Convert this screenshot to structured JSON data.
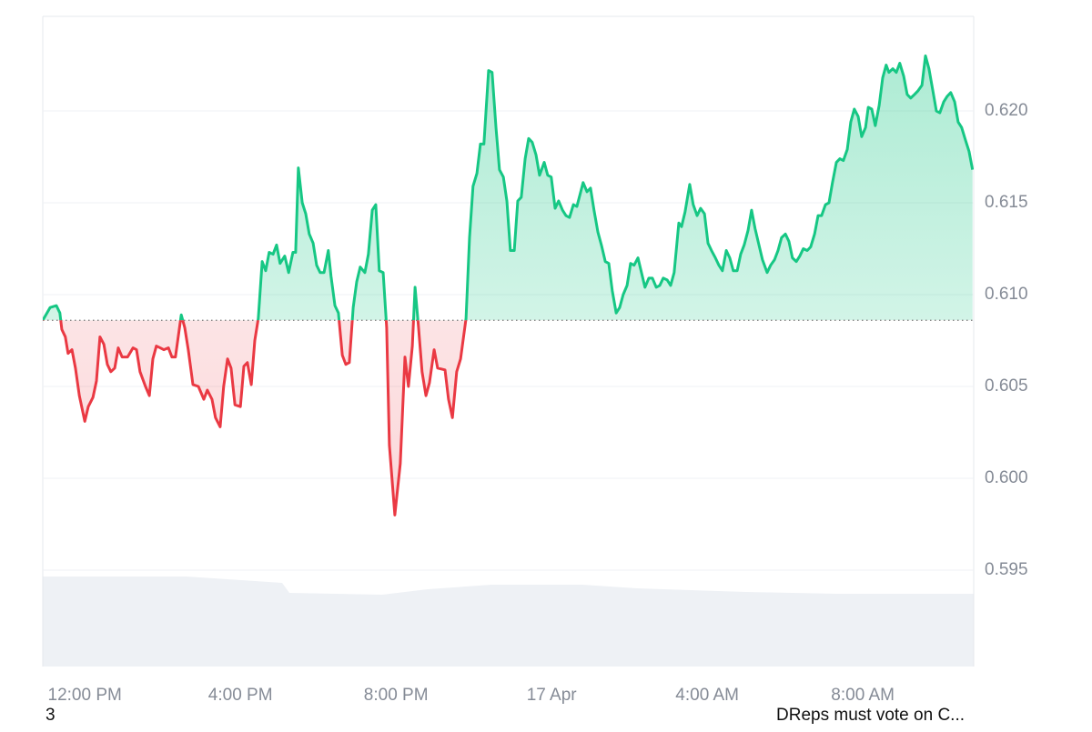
{
  "chart_data": {
    "type": "line",
    "x": [
      10.92,
      11.11,
      11.27,
      11.36,
      11.41,
      11.5,
      11.57,
      11.67,
      11.76,
      11.86,
      12.0,
      12.09,
      12.21,
      12.3,
      12.39,
      12.49,
      12.58,
      12.67,
      12.77,
      12.86,
      12.96,
      13.1,
      13.24,
      13.33,
      13.42,
      13.56,
      13.66,
      13.75,
      13.84,
      13.94,
      14.03,
      14.15,
      14.24,
      14.33,
      14.48,
      14.57,
      14.66,
      14.78,
      14.92,
      15.06,
      15.15,
      15.27,
      15.36,
      15.48,
      15.57,
      15.67,
      15.76,
      15.86,
      16.0,
      16.09,
      16.18,
      16.28,
      16.37,
      16.46,
      16.56,
      16.65,
      16.74,
      16.84,
      16.93,
      17.02,
      17.14,
      17.24,
      17.35,
      17.42,
      17.49,
      17.59,
      17.68,
      17.77,
      17.87,
      17.96,
      18.05,
      18.15,
      18.26,
      18.33,
      18.43,
      18.52,
      18.62,
      18.71,
      18.8,
      18.9,
      18.99,
      19.08,
      19.2,
      19.29,
      19.39,
      19.48,
      19.57,
      19.67,
      19.76,
      19.83,
      19.97,
      20.11,
      20.23,
      20.32,
      20.42,
      20.49,
      20.58,
      20.67,
      20.77,
      20.86,
      20.98,
      21.07,
      21.26,
      21.35,
      21.45,
      21.56,
      21.66,
      21.8,
      21.89,
      21.98,
      22.08,
      22.17,
      22.26,
      22.38,
      22.47,
      22.57,
      22.66,
      22.76,
      22.85,
      22.94,
      23.04,
      23.13,
      23.22,
      23.32,
      23.41,
      23.5,
      23.6,
      23.69,
      23.81,
      23.9,
      23.99,
      24.09,
      24.18,
      24.28,
      24.37,
      24.46,
      24.56,
      24.65,
      24.81,
      24.91,
      25.0,
      25.09,
      25.19,
      25.28,
      25.38,
      25.47,
      25.56,
      25.66,
      25.75,
      25.84,
      25.94,
      26.03,
      26.12,
      26.22,
      26.31,
      26.4,
      26.5,
      26.59,
      26.69,
      26.78,
      26.87,
      26.97,
      27.06,
      27.15,
      27.27,
      27.34,
      27.43,
      27.55,
      27.64,
      27.74,
      27.83,
      27.93,
      28.02,
      28.11,
      28.21,
      28.3,
      28.39,
      28.49,
      28.58,
      28.67,
      28.77,
      28.86,
      28.95,
      29.05,
      29.14,
      29.23,
      29.33,
      29.42,
      29.54,
      29.63,
      29.73,
      29.82,
      29.91,
      30.01,
      30.1,
      30.19,
      30.29,
      30.38,
      30.47,
      30.57,
      30.66,
      30.76,
      30.85,
      30.94,
      31.04,
      31.13,
      31.22,
      31.32,
      31.41,
      31.5,
      31.6,
      31.69,
      31.78,
      31.88,
      31.97,
      32.07,
      32.14,
      32.23,
      32.32,
      32.42,
      32.51,
      32.6,
      32.67,
      32.77,
      32.86,
      32.95,
      33.05,
      33.14,
      33.23,
      33.33,
      33.42,
      33.52,
      33.61,
      33.7,
      33.8,
      33.89,
      33.98,
      34.08,
      34.17,
      34.26,
      34.36,
      34.45,
      34.54,
      34.64,
      34.73,
      34.82
    ],
    "values": [
      0.6086,
      0.6093,
      0.6094,
      0.609,
      0.6081,
      0.6077,
      0.6068,
      0.607,
      0.606,
      0.6045,
      0.6031,
      0.6039,
      0.6044,
      0.6053,
      0.6077,
      0.6073,
      0.6062,
      0.6058,
      0.606,
      0.6071,
      0.6066,
      0.6066,
      0.6071,
      0.607,
      0.6058,
      0.605,
      0.6045,
      0.6065,
      0.6072,
      0.6071,
      0.607,
      0.6071,
      0.6066,
      0.6066,
      0.6089,
      0.6082,
      0.607,
      0.6051,
      0.605,
      0.6043,
      0.6048,
      0.6043,
      0.6033,
      0.6028,
      0.605,
      0.6065,
      0.606,
      0.604,
      0.6039,
      0.6061,
      0.6063,
      0.6051,
      0.6075,
      0.6087,
      0.6118,
      0.6113,
      0.6123,
      0.6122,
      0.6127,
      0.6117,
      0.6121,
      0.6112,
      0.6123,
      0.6123,
      0.6169,
      0.615,
      0.6144,
      0.6133,
      0.6128,
      0.6116,
      0.6112,
      0.6112,
      0.6124,
      0.611,
      0.6094,
      0.609,
      0.6067,
      0.6062,
      0.6063,
      0.6093,
      0.6107,
      0.6115,
      0.6112,
      0.6122,
      0.6146,
      0.6149,
      0.6113,
      0.6112,
      0.6082,
      0.6018,
      0.598,
      0.6008,
      0.6066,
      0.605,
      0.6072,
      0.6104,
      0.6082,
      0.6058,
      0.6045,
      0.6052,
      0.607,
      0.606,
      0.6059,
      0.6043,
      0.6033,
      0.6058,
      0.6065,
      0.6087,
      0.6131,
      0.6159,
      0.6166,
      0.6182,
      0.6182,
      0.6222,
      0.6221,
      0.6191,
      0.6168,
      0.6164,
      0.6151,
      0.6124,
      0.6124,
      0.6151,
      0.6153,
      0.6174,
      0.6185,
      0.6183,
      0.6176,
      0.6165,
      0.6172,
      0.6165,
      0.6164,
      0.6147,
      0.6151,
      0.6146,
      0.6143,
      0.6142,
      0.6149,
      0.6148,
      0.6161,
      0.6156,
      0.6158,
      0.6146,
      0.6134,
      0.6127,
      0.6118,
      0.6117,
      0.6102,
      0.609,
      0.6093,
      0.61,
      0.6105,
      0.6117,
      0.6116,
      0.612,
      0.6112,
      0.6104,
      0.6109,
      0.6109,
      0.6104,
      0.6105,
      0.6109,
      0.6108,
      0.6105,
      0.6112,
      0.6139,
      0.6137,
      0.6145,
      0.616,
      0.6149,
      0.6143,
      0.6147,
      0.6144,
      0.6128,
      0.6124,
      0.612,
      0.6116,
      0.6113,
      0.6124,
      0.612,
      0.6113,
      0.6113,
      0.6122,
      0.6127,
      0.6135,
      0.6146,
      0.6136,
      0.6127,
      0.6119,
      0.6112,
      0.6116,
      0.6119,
      0.6124,
      0.6131,
      0.6133,
      0.6129,
      0.612,
      0.6118,
      0.6121,
      0.6125,
      0.6124,
      0.6126,
      0.6133,
      0.6143,
      0.6143,
      0.6149,
      0.615,
      0.6161,
      0.6172,
      0.6174,
      0.6173,
      0.6179,
      0.6194,
      0.6201,
      0.6197,
      0.6186,
      0.6191,
      0.6202,
      0.6201,
      0.6192,
      0.6203,
      0.6218,
      0.6225,
      0.6221,
      0.6223,
      0.6221,
      0.6226,
      0.6219,
      0.6209,
      0.6207,
      0.6209,
      0.6211,
      0.6214,
      0.623,
      0.6223,
      0.6211,
      0.62,
      0.6199,
      0.6205,
      0.6208,
      0.621,
      0.6205,
      0.6194,
      0.6191,
      0.6184,
      0.6178,
      0.6168
    ],
    "baseline": 0.6086,
    "color_up": "#16c784",
    "color_down": "#ea3943",
    "xlim": [
      10.92,
      34.85
    ],
    "xticks": [
      {
        "value": 12,
        "label": "12:00 PM"
      },
      {
        "value": 16,
        "label": "4:00 PM"
      },
      {
        "value": 20,
        "label": "8:00 PM"
      },
      {
        "value": 24,
        "label": "17 Apr"
      },
      {
        "value": 28,
        "label": "4:00 AM"
      },
      {
        "value": 32,
        "label": "8:00 AM"
      }
    ],
    "ylim": [
      0.58975,
      0.62515
    ],
    "yticks": [
      0.595,
      {
        "value": 0.6,
        "label": "0.600"
      },
      0.605,
      {
        "value": 0.61,
        "label": "0.610"
      },
      0.615,
      {
        "value": 0.62,
        "label": "0.620"
      }
    ],
    "grid": true
  },
  "footer": {
    "left": "3",
    "right": "DReps must vote on C..."
  }
}
